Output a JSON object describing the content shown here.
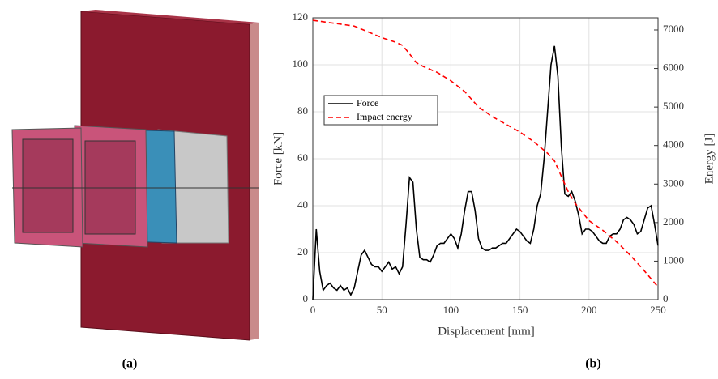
{
  "panel_labels": [
    "(a)",
    "(b)"
  ],
  "chart_data": {
    "type": "line",
    "xlabel": "Displacement [mm]",
    "ylabel": "Force [kN]",
    "y2label": "Energy [J]",
    "xlim": [
      0,
      250
    ],
    "xticks": [
      0,
      50,
      100,
      150,
      200,
      250
    ],
    "ylim": [
      0,
      120
    ],
    "yticks": [
      0,
      20,
      40,
      60,
      80,
      100,
      120
    ],
    "y2lim": [
      0,
      7315
    ],
    "y2ticks": [
      0,
      1000,
      2000,
      3000,
      4000,
      5000,
      6000,
      7000
    ],
    "grid": true,
    "legend": "upper left",
    "series": [
      {
        "name": "Force",
        "color": "#000000",
        "dash": "solid",
        "x": [
          0,
          2.5,
          5,
          7.5,
          10,
          12.5,
          15,
          17.5,
          20,
          22.5,
          25,
          27.5,
          30,
          32.5,
          35,
          37.5,
          40,
          42.5,
          45,
          47.5,
          50,
          52.5,
          55,
          57.5,
          60,
          62.5,
          65,
          67.5,
          70,
          72.5,
          75,
          77.5,
          80,
          82.5,
          85,
          87.5,
          90,
          92.5,
          95,
          97.5,
          100,
          102.5,
          105,
          107.5,
          110,
          112.5,
          115,
          117.5,
          120,
          122.5,
          125,
          127.5,
          130,
          132.5,
          135,
          137.5,
          140,
          142.5,
          145,
          147.5,
          150,
          152.5,
          155,
          157.5,
          160,
          162.5,
          165,
          167.5,
          170,
          172.5,
          175,
          177.5,
          180,
          182.5,
          185,
          187.5,
          190,
          192.5,
          195,
          197.5,
          200,
          202.5,
          205,
          207.5,
          210,
          212.5,
          215,
          217.5,
          220,
          222.5,
          225,
          227.5,
          230,
          232.5,
          235,
          237.5,
          240,
          242.5,
          245,
          247.5,
          250
        ],
        "values": [
          0,
          30,
          12,
          4,
          6,
          7,
          5,
          4,
          6,
          4,
          5,
          2,
          5,
          12,
          19,
          21,
          18,
          15,
          14,
          14,
          12,
          14,
          16,
          13,
          14,
          11,
          14,
          32,
          52,
          50,
          30,
          18,
          17,
          17,
          16,
          19,
          23,
          24,
          24,
          26,
          28,
          26,
          22,
          28,
          38,
          46,
          46,
          38,
          26,
          22,
          21,
          21,
          22,
          22,
          23,
          24,
          24,
          26,
          28,
          30,
          29,
          27,
          25,
          24,
          30,
          40,
          45,
          60,
          80,
          100,
          108,
          95,
          65,
          45,
          44,
          46,
          42,
          36,
          28,
          30,
          30,
          29,
          27,
          25,
          24,
          24,
          27,
          28,
          28,
          30,
          34,
          35,
          34,
          32,
          28,
          29,
          34,
          39,
          40,
          32,
          23
        ]
      },
      {
        "name": "Impact energy",
        "color": "#ff0000",
        "dash": "dashed",
        "axis": "y2",
        "x": [
          0,
          10,
          20,
          30,
          40,
          50,
          60,
          65,
          70,
          75,
          80,
          90,
          100,
          110,
          115,
          120,
          130,
          140,
          150,
          160,
          165,
          170,
          175,
          180,
          185,
          190,
          200,
          210,
          220,
          230,
          240,
          250
        ],
        "values": [
          7250,
          7200,
          7150,
          7100,
          6950,
          6800,
          6680,
          6600,
          6380,
          6150,
          6050,
          5900,
          5680,
          5400,
          5200,
          5000,
          4750,
          4550,
          4350,
          4100,
          3950,
          3800,
          3600,
          3200,
          2800,
          2500,
          2050,
          1800,
          1500,
          1150,
          750,
          330
        ]
      }
    ]
  }
}
